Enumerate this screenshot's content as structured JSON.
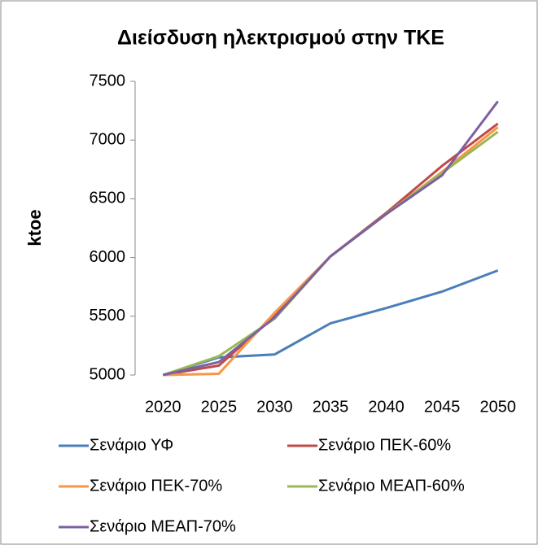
{
  "chart_data": {
    "type": "line",
    "title": "Διείσδυση ηλεκτρισμού στην ΤΚΕ",
    "y_label": "ktoe",
    "categories": [
      "2020",
      "2025",
      "2030",
      "2035",
      "2040",
      "2045",
      "2050"
    ],
    "series": [
      {
        "name": "Σενάριο ΥΦ",
        "color": "#4a7ebb",
        "values": [
          5000,
          5150,
          5175,
          5440,
          5570,
          5710,
          5890
        ]
      },
      {
        "name": "Σενάριο ΠΕΚ-60%",
        "color": "#be4b48",
        "values": [
          5000,
          5080,
          5500,
          6010,
          6380,
          6780,
          7140
        ]
      },
      {
        "name": "Σενάριο ΠΕΚ-70%",
        "color": "#f79646",
        "values": [
          5000,
          5010,
          5530,
          6010,
          6370,
          6730,
          7110
        ]
      },
      {
        "name": "Σενάριο ΜΕΑΠ-60%",
        "color": "#98b954",
        "values": [
          5000,
          5160,
          5480,
          6010,
          6370,
          6720,
          7070
        ]
      },
      {
        "name": "Σενάριο ΜΕΑΠ-70%",
        "color": "#7d60a0",
        "values": [
          5000,
          5110,
          5490,
          6010,
          6370,
          6700,
          7330
        ]
      }
    ],
    "ylim": [
      5000,
      7500
    ],
    "yticks": [
      5000,
      5500,
      6000,
      6500,
      7000,
      7500
    ],
    "grid": false
  }
}
